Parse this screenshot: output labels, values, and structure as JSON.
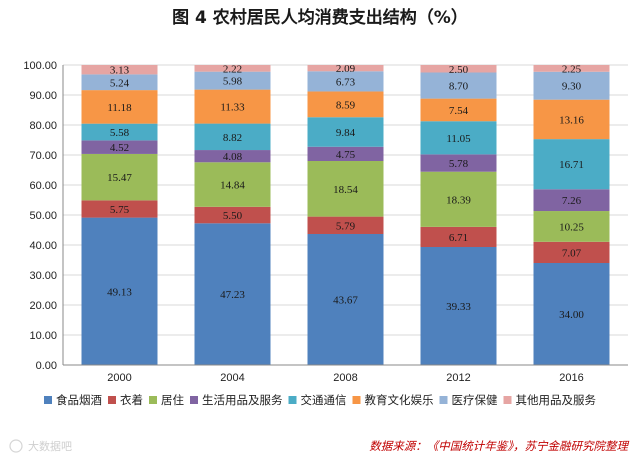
{
  "chart_data": {
    "type": "bar",
    "stacked": true,
    "title": "图 4  农村居民人均消费支出结构（%）",
    "categories": [
      "2000",
      "2004",
      "2008",
      "2012",
      "2016"
    ],
    "ylim": [
      0,
      100
    ],
    "yticks": [
      "0.00",
      "10.00",
      "20.00",
      "30.00",
      "40.00",
      "50.00",
      "60.00",
      "70.00",
      "80.00",
      "90.00",
      "100.00"
    ],
    "series": [
      {
        "name": "食品烟酒",
        "color": "#4f81bd",
        "values": [
          49.13,
          47.23,
          43.67,
          39.33,
          34.0
        ],
        "labels": [
          "49.13",
          "47.23",
          "43.67",
          "39.33",
          "34.00"
        ]
      },
      {
        "name": "衣着",
        "color": "#c0504d",
        "values": [
          5.75,
          5.5,
          5.79,
          6.71,
          7.07
        ],
        "labels": [
          "5.75",
          "5.50",
          "5.79",
          "6.71",
          "7.07"
        ]
      },
      {
        "name": "居住",
        "color": "#9bbb59",
        "values": [
          15.47,
          14.84,
          18.54,
          18.39,
          10.25
        ],
        "labels": [
          "15.47",
          "14.84",
          "18.54",
          "18.39",
          "10.25"
        ]
      },
      {
        "name": "生活用品及服务",
        "color": "#8064a2",
        "values": [
          4.52,
          4.08,
          4.75,
          5.78,
          7.26
        ],
        "labels": [
          "4.52",
          "4.08",
          "4.75",
          "5.78",
          "7.26"
        ]
      },
      {
        "name": "交通通信",
        "color": "#4bacc6",
        "values": [
          5.58,
          8.82,
          9.84,
          11.05,
          16.71
        ],
        "labels": [
          "5.58",
          "8.82",
          "9.84",
          "11.05",
          "16.71"
        ]
      },
      {
        "name": "教育文化娱乐",
        "color": "#f79646",
        "values": [
          11.18,
          11.33,
          8.59,
          7.54,
          13.16
        ],
        "labels": [
          "11.18",
          "11.33",
          "8.59",
          "7.54",
          "13.16"
        ]
      },
      {
        "name": "医疗保健",
        "color": "#95b3d7",
        "values": [
          5.24,
          5.98,
          6.73,
          8.7,
          9.3
        ],
        "labels": [
          "5.24",
          "5.98",
          "6.73",
          "8.70",
          "9.30"
        ]
      },
      {
        "name": "其他用品及服务",
        "color": "#e6a5a3",
        "values": [
          3.13,
          2.22,
          2.09,
          2.5,
          2.25
        ],
        "labels": [
          "3.13",
          "2.22",
          "2.09",
          "2.50",
          "2.25"
        ]
      }
    ],
    "legend_position": "bottom",
    "source": "数据来源：《中国统计年鉴》，苏宁金融研究院整理",
    "watermark": "大数据吧"
  }
}
